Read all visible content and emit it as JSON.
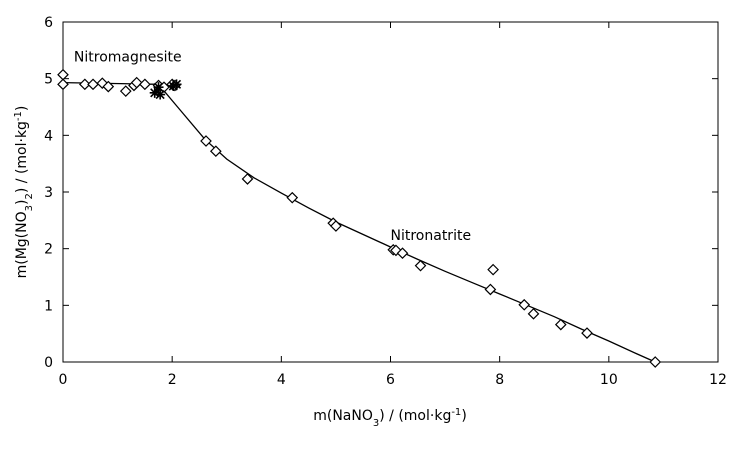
{
  "chart_data": {
    "type": "scatter",
    "title": "",
    "xlabel_parts": [
      "m(NaNO",
      "3",
      ") / (mol·kg",
      "-1",
      ")"
    ],
    "ylabel_parts": [
      "m(Mg(NO",
      "3",
      ")",
      "2",
      ") / (mol·kg",
      "-1",
      ")"
    ],
    "xlim": [
      0,
      12
    ],
    "ylim": [
      0,
      6
    ],
    "x_ticks": [
      0,
      2,
      4,
      6,
      8,
      10,
      12
    ],
    "y_ticks": [
      0,
      1,
      2,
      3,
      4,
      5,
      6
    ],
    "grid": false,
    "annotations": [
      {
        "text": "Nitromagnesite",
        "x": 0.2,
        "y": 5.3
      },
      {
        "text": "Nitronatrite",
        "x": 6.0,
        "y": 2.15
      }
    ],
    "series": [
      {
        "marker": "diamond-open",
        "points": [
          [
            0.0,
            5.07
          ],
          [
            0.0,
            4.9
          ],
          [
            0.4,
            4.9
          ],
          [
            0.55,
            4.9
          ],
          [
            0.72,
            4.92
          ],
          [
            0.83,
            4.86
          ],
          [
            1.15,
            4.78
          ],
          [
            1.3,
            4.88
          ],
          [
            1.35,
            4.93
          ],
          [
            1.5,
            4.9
          ],
          [
            1.75,
            4.88
          ],
          [
            1.85,
            4.85
          ],
          [
            2.0,
            4.9
          ],
          [
            2.05,
            4.88
          ],
          [
            2.62,
            3.9
          ],
          [
            2.8,
            3.72
          ],
          [
            3.38,
            3.23
          ],
          [
            4.2,
            2.9
          ],
          [
            4.95,
            2.45
          ],
          [
            5.0,
            2.4
          ],
          [
            6.05,
            1.98
          ],
          [
            6.1,
            1.97
          ],
          [
            6.22,
            1.92
          ],
          [
            6.55,
            1.7
          ],
          [
            7.83,
            1.28
          ],
          [
            7.88,
            1.63
          ],
          [
            8.45,
            1.01
          ],
          [
            8.62,
            0.85
          ],
          [
            9.12,
            0.66
          ],
          [
            9.6,
            0.51
          ],
          [
            10.85,
            0.0
          ]
        ]
      },
      {
        "marker": "star",
        "points": [
          [
            1.68,
            4.75
          ],
          [
            1.78,
            4.72
          ],
          [
            1.75,
            4.85
          ],
          [
            2.02,
            4.87
          ],
          [
            2.08,
            4.9
          ]
        ]
      }
    ],
    "curves": [
      {
        "name": "",
        "points": [
          [
            0.0,
            4.93
          ],
          [
            1.75,
            4.9
          ],
          [
            2.1,
            4.87
          ]
        ]
      },
      {
        "name": "",
        "points": [
          [
            1.75,
            4.9
          ],
          [
            2.1,
            4.5
          ],
          [
            2.6,
            3.93
          ],
          [
            3.0,
            3.58
          ],
          [
            3.5,
            3.25
          ],
          [
            4.0,
            2.98
          ],
          [
            4.5,
            2.72
          ],
          [
            5.0,
            2.47
          ],
          [
            5.5,
            2.25
          ],
          [
            6.0,
            2.03
          ],
          [
            6.5,
            1.81
          ],
          [
            7.0,
            1.6
          ],
          [
            7.5,
            1.4
          ],
          [
            8.0,
            1.2
          ],
          [
            8.5,
            1.0
          ],
          [
            9.0,
            0.8
          ],
          [
            9.5,
            0.58
          ],
          [
            10.0,
            0.37
          ],
          [
            10.5,
            0.15
          ],
          [
            10.85,
            0.0
          ]
        ]
      }
    ]
  }
}
